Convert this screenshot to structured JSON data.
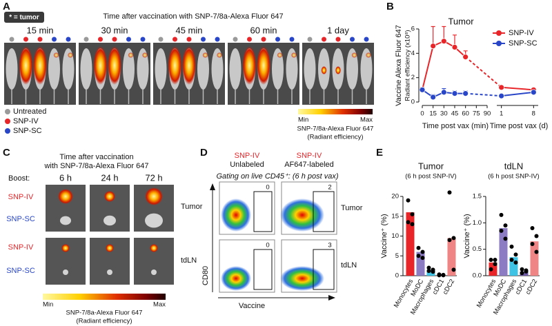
{
  "letters": [
    "A",
    "B",
    "C",
    "D",
    "E"
  ],
  "panel_a": {
    "tag": "* = tumor",
    "title": "Time after vaccination with SNP-7/8a-Alexa Fluor 647",
    "timepoints": [
      "15 min",
      "30 min",
      "45 min",
      "60 min",
      "1 day"
    ],
    "legend": [
      {
        "label": "Untreated",
        "color": "#9a9a9a"
      },
      {
        "label": "SNP-IV",
        "color": "#e8262a"
      },
      {
        "label": "SNP-SC",
        "color": "#2946c8"
      }
    ],
    "colorbar": {
      "min": "Min",
      "max": "Max",
      "label": "SNP-7/8a-Alexa Fluor 647",
      "unit": "(Radiant efficiency)"
    }
  },
  "chart_data": [
    {
      "type": "line",
      "title": "Tumor",
      "ylabel": [
        "Vaccine Alexa Fluor 647",
        "Radiant efficiency (x10⁸)"
      ],
      "x": [
        0,
        15,
        30,
        45,
        60
      ],
      "xlim": [
        0,
        90
      ],
      "xticks": [
        0,
        15,
        30,
        45,
        60,
        75,
        90
      ],
      "xlabel": "Time post vax (min)",
      "x2": [
        1,
        8
      ],
      "x2lim": [
        0,
        9
      ],
      "x2ticks": [
        1,
        8
      ],
      "x2label": "Time post vax (d)",
      "ylim": [
        0,
        6
      ],
      "yticks": [
        0,
        2,
        4,
        6
      ],
      "series": [
        {
          "name": "SNP-IV",
          "color": "#e8262a",
          "values": [
            1.0,
            4.6,
            5.0,
            4.5,
            3.7
          ],
          "errors": [
            0.2,
            1.6,
            1.2,
            1.0,
            0.5
          ],
          "values2": [
            1.2,
            1.0
          ]
        },
        {
          "name": "SNP-SC",
          "color": "#2946c8",
          "values": [
            1.0,
            0.4,
            0.8,
            0.7,
            0.7
          ],
          "errors": [
            0.1,
            0.2,
            0.3,
            0.2,
            0.2
          ],
          "values2": [
            0.5,
            0.8
          ]
        }
      ]
    },
    {
      "type": "bar",
      "title": "Tumor",
      "subtitle": "(6 h post SNP-IV)",
      "ylabel": "Vaccine⁺ (%)",
      "categories": [
        "Monocytes",
        "MoDC",
        "Macrophages",
        "cDC1",
        "cDC2"
      ],
      "colors": [
        "#e8262a",
        "#8c7cc4",
        "#3fc3e4",
        "#6f5aa8",
        "#f08585"
      ],
      "values": [
        16,
        6,
        1.5,
        0.2,
        9.5
      ],
      "points": [
        [
          19,
          15.5,
          13.5,
          13
        ],
        [
          7,
          6,
          5,
          4.5
        ],
        [
          2,
          1.5,
          1.2,
          1
        ],
        [
          0.3,
          0.2,
          0.1,
          0.1
        ],
        [
          21,
          9.5,
          9,
          1.5
        ]
      ],
      "ylim": [
        0,
        20
      ],
      "yticks": [
        0,
        5,
        10,
        15,
        20
      ]
    },
    {
      "type": "bar",
      "title": "tdLN",
      "subtitle": "(6 h post SNP-IV)",
      "ylabel": "Vaccine⁺ (%)",
      "categories": [
        "Monocytes",
        "MoDC",
        "Macrophages",
        "cDC1",
        "cDC2"
      ],
      "colors": [
        "#e8262a",
        "#8c7cc4",
        "#3fc3e4",
        "#6f5aa8",
        "#f08585"
      ],
      "values": [
        0.25,
        0.9,
        0.35,
        0.08,
        0.65
      ],
      "points": [
        [
          0.3,
          0.22,
          0.12,
          0.3
        ],
        [
          1.15,
          0.95,
          0.85,
          0.7
        ],
        [
          0.55,
          0.4,
          0.3,
          0.25
        ],
        [
          0.12,
          0.08,
          0.05,
          0.1
        ],
        [
          0.9,
          0.75,
          0.6,
          0.45
        ]
      ],
      "ylim": [
        0,
        1.5
      ],
      "yticks": [
        {
          "value": 0,
          "label": "0.0"
        },
        0.5,
        {
          "value": 1,
          "label": "1.0"
        },
        1.5
      ]
    }
  ],
  "panel_c": {
    "title": [
      "Time after vaccination",
      "with SNP-7/8a-Alexa Fluor 647"
    ],
    "boost": "Boost:",
    "timepoints": [
      "6 h",
      "24 h",
      "72 h"
    ],
    "rows": [
      "SNP-IV",
      "SNP-SC",
      "SNP-IV",
      "SNP-SC"
    ],
    "tissues": [
      "Tumor",
      "tdLN"
    ],
    "colorbar": {
      "min": "Min",
      "max": "Max",
      "label": "SNP-7/8a-Alexa Fluor 647",
      "unit": "(Radiant efficiency)"
    }
  },
  "panel_d": {
    "groups": [
      {
        "name": "SNP-IV",
        "label": "Unlabeled"
      },
      {
        "name": "SNP-IV",
        "label": "AF647-labeled"
      }
    ],
    "gating": "Gating on live CD45⁺: (6 h post vax)",
    "gates": [
      0,
      2,
      0,
      3
    ],
    "tissues": [
      "Tumor",
      "tdLN"
    ],
    "xlabel": "Vaccine",
    "ylabel": "CD80"
  }
}
